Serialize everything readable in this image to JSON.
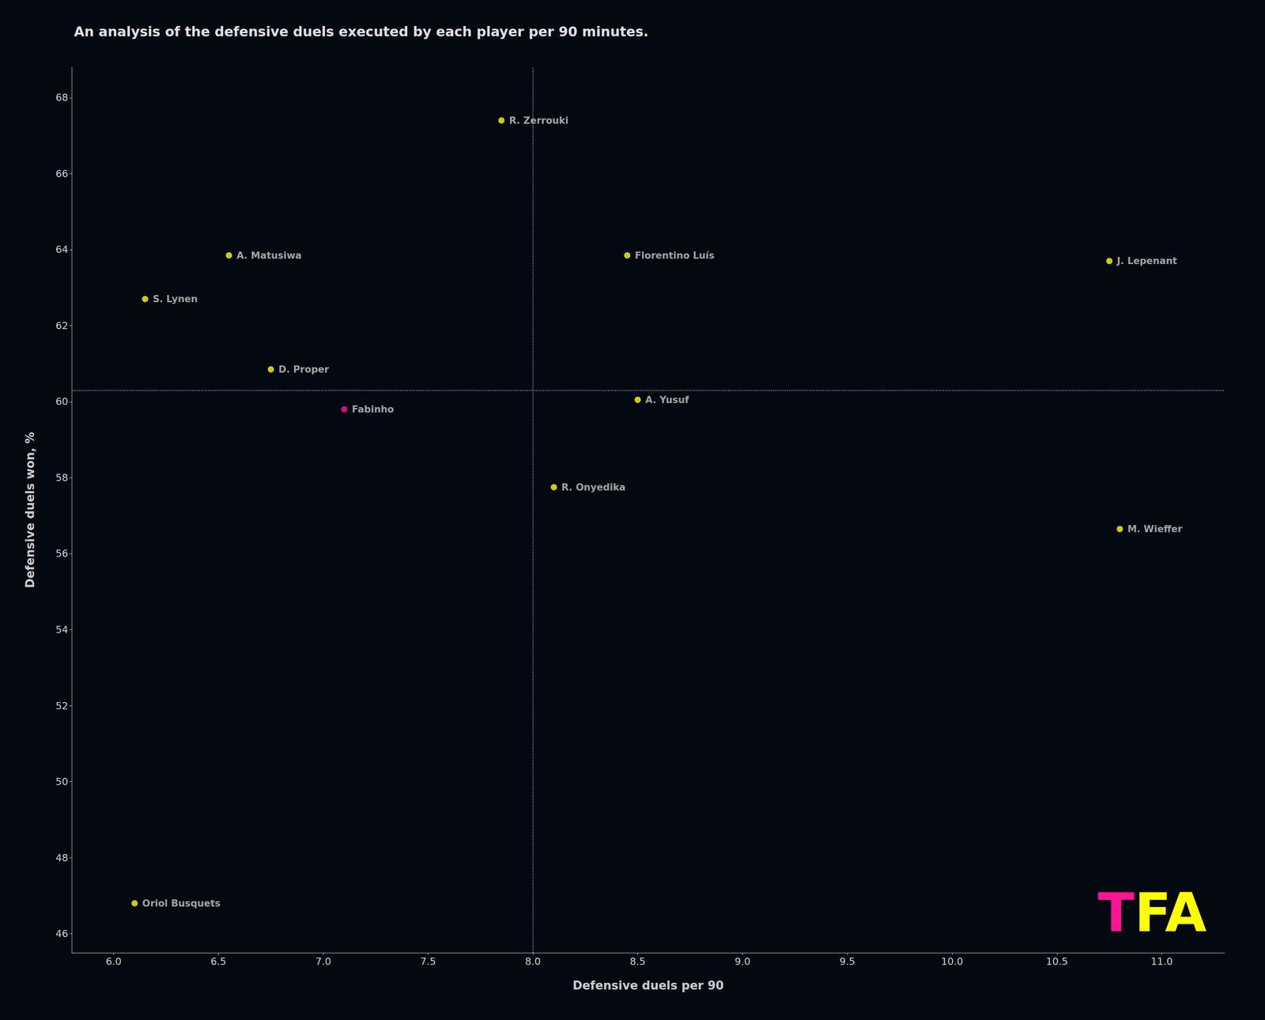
{
  "chart_data": {
    "type": "scatter",
    "title": "An analysis of the defensive duels executed by each player per 90 minutes.",
    "xlabel": "Defensive duels per 90",
    "ylabel": "Defensive duels won, %",
    "x": [
      7.85,
      8.45,
      10.75,
      6.55,
      6.15,
      6.75,
      7.1,
      8.5,
      8.1,
      10.8,
      6.1
    ],
    "values": [
      67.4,
      63.85,
      63.7,
      63.85,
      62.7,
      60.85,
      59.8,
      60.05,
      57.75,
      56.65,
      46.8
    ],
    "labels": [
      "R. Zerrouki",
      "Florentino Luís",
      "J. Lepenant",
      "A. Matusiwa",
      "S. Lynen",
      "D. Proper",
      "Fabinho",
      "A. Yusuf",
      "R. Onyedika",
      "M. Wieffer",
      "Oriol Busquets"
    ],
    "colors": [
      "#ffff00",
      "#ffff00",
      "#ffff00",
      "#ffff00",
      "#ffff00",
      "#ffff00",
      "#ff1493",
      "#ffff00",
      "#ffff00",
      "#ffff00",
      "#ffff00"
    ],
    "xlim": [
      5.8,
      11.3
    ],
    "ylim": [
      45.5,
      68.8
    ],
    "xticks": [
      {
        "value": 6,
        "label": "6.0"
      },
      6.5,
      {
        "value": 7,
        "label": "7.0"
      },
      7.5,
      {
        "value": 8,
        "label": "8.0"
      },
      8.5,
      {
        "value": 9,
        "label": "9.0"
      },
      9.5,
      {
        "value": 10,
        "label": "10.0"
      },
      10.5,
      {
        "value": 11,
        "label": "11.0"
      }
    ],
    "yticks": [
      46,
      48,
      50,
      52,
      54,
      56,
      58,
      60,
      62,
      64,
      66,
      68
    ],
    "grid": false,
    "ref_lines": [
      {
        "axis": "x",
        "value": 8.0
      },
      {
        "axis": "y",
        "value": 60.3
      }
    ],
    "annotations": [
      {
        "text": "T",
        "color": "#ff1493"
      },
      {
        "text": "FA",
        "color": "#ffff00"
      }
    ]
  }
}
